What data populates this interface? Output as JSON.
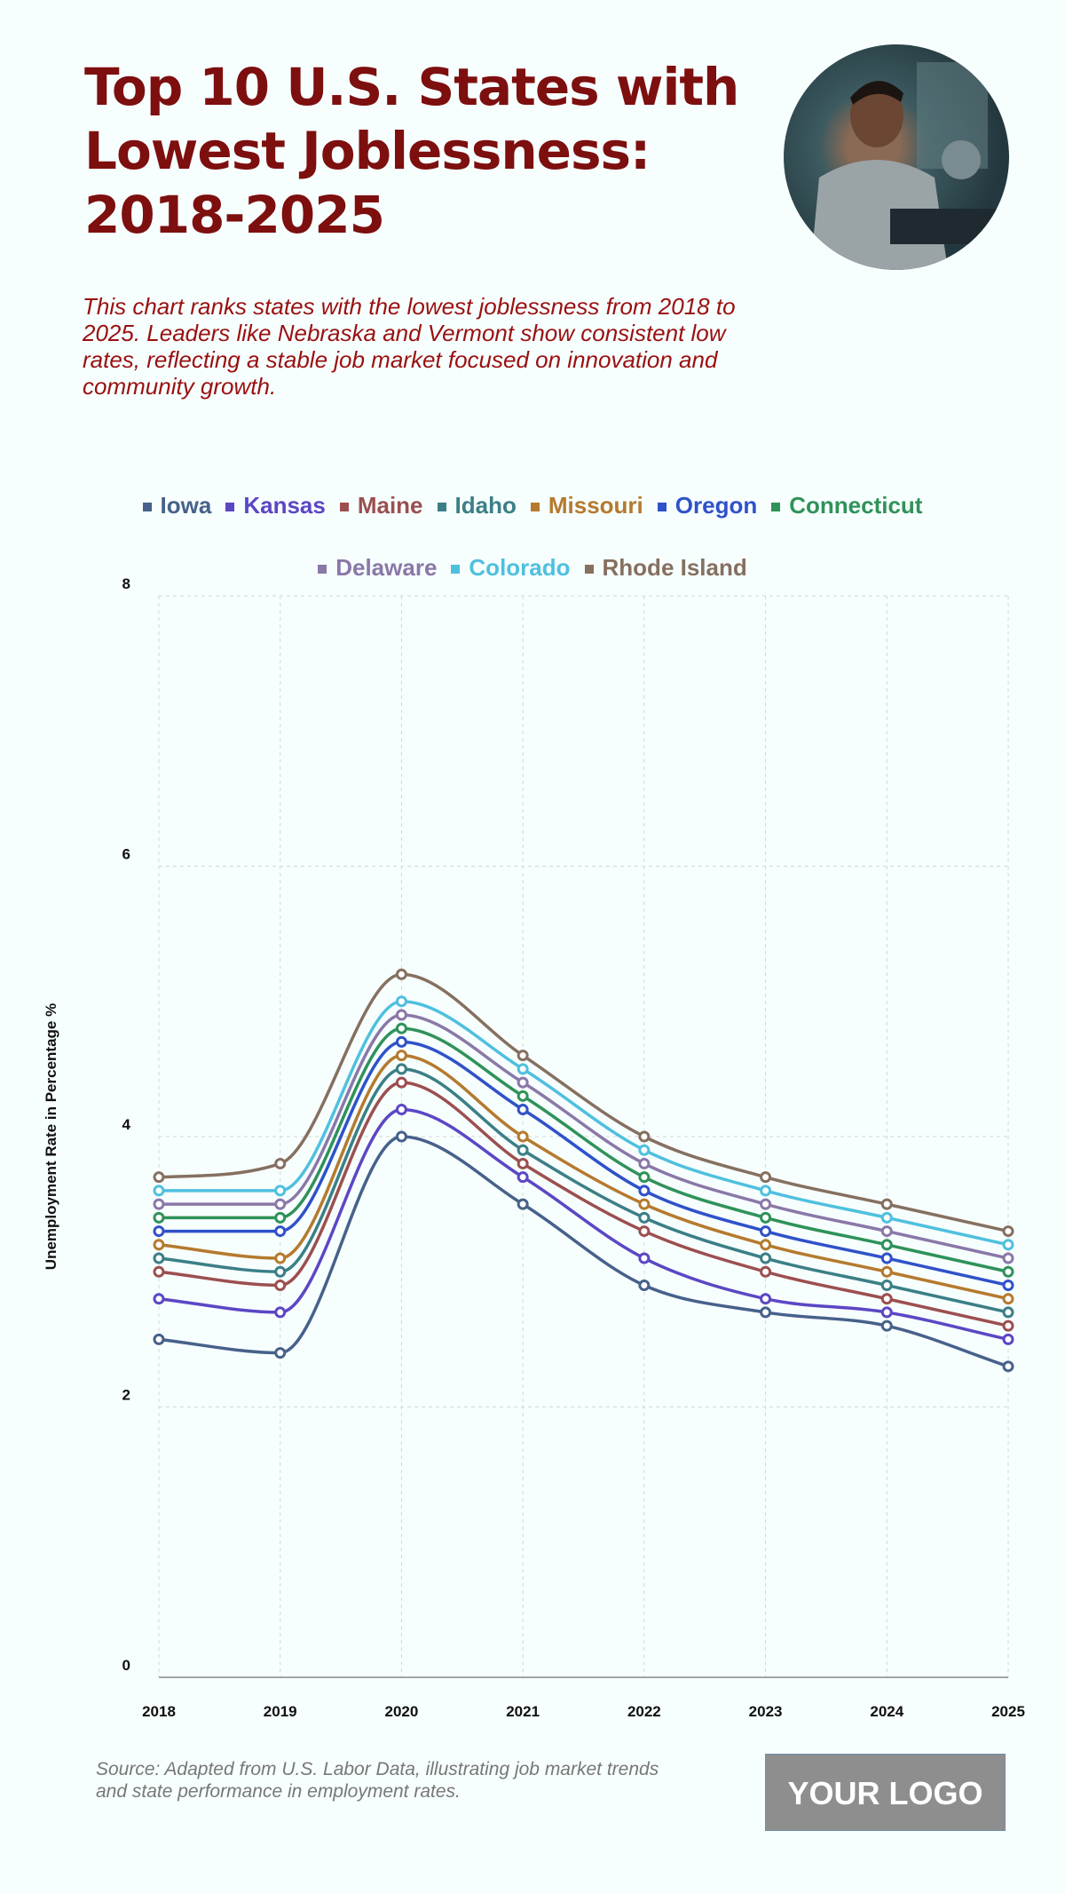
{
  "title": "Top 10 U.S. States with Lowest Joblessness: 2018-2025",
  "subtitle": "This chart ranks states with the lowest joblessness from 2018 to 2025. Leaders like Nebraska and Vermont show consistent low rates, reflecting a stable job market focused on innovation and community growth.",
  "source": "Source: Adapted from U.S. Labor Data, illustrating job market trends and state performance in employment rates.",
  "logo_text": "YOUR LOGO",
  "chart_data": {
    "type": "line",
    "ylabel": "Unemployment Rate in Percentage %",
    "xlabel": "",
    "ylim": [
      0,
      8
    ],
    "yticks": [
      0,
      2,
      4,
      6,
      8
    ],
    "grid": true,
    "legend_position": "top",
    "smooth": true,
    "x": [
      "2018",
      "2019",
      "2020",
      "2021",
      "2022",
      "2023",
      "2024",
      "2025"
    ],
    "series": [
      {
        "name": "Iowa",
        "color": "#46618a",
        "values": [
          2.5,
          2.4,
          4.0,
          3.5,
          2.9,
          2.7,
          2.6,
          2.3
        ]
      },
      {
        "name": "Kansas",
        "color": "#5b47c4",
        "values": [
          2.8,
          2.7,
          4.2,
          3.7,
          3.1,
          2.8,
          2.7,
          2.5
        ]
      },
      {
        "name": "Maine",
        "color": "#9c4f4f",
        "values": [
          3.0,
          2.9,
          4.4,
          3.8,
          3.3,
          3.0,
          2.8,
          2.6
        ]
      },
      {
        "name": "Idaho",
        "color": "#3b7f86",
        "values": [
          3.1,
          3.0,
          4.5,
          3.9,
          3.4,
          3.1,
          2.9,
          2.7
        ]
      },
      {
        "name": "Missouri",
        "color": "#b57a2e",
        "values": [
          3.2,
          3.1,
          4.6,
          4.0,
          3.5,
          3.2,
          3.0,
          2.8
        ]
      },
      {
        "name": "Oregon",
        "color": "#2f52c9",
        "values": [
          3.3,
          3.3,
          4.7,
          4.2,
          3.6,
          3.3,
          3.1,
          2.9
        ]
      },
      {
        "name": "Connecticut",
        "color": "#2f9259",
        "values": [
          3.4,
          3.4,
          4.8,
          4.3,
          3.7,
          3.4,
          3.2,
          3.0
        ]
      },
      {
        "name": "Delaware",
        "color": "#8a78a8",
        "values": [
          3.5,
          3.5,
          4.9,
          4.4,
          3.8,
          3.5,
          3.3,
          3.1
        ]
      },
      {
        "name": "Colorado",
        "color": "#4fc0de",
        "values": [
          3.6,
          3.6,
          5.0,
          4.5,
          3.9,
          3.6,
          3.4,
          3.2
        ]
      },
      {
        "name": "Rhode Island",
        "color": "#857060",
        "values": [
          3.7,
          3.8,
          5.2,
          4.6,
          4.0,
          3.7,
          3.5,
          3.3
        ]
      }
    ]
  }
}
